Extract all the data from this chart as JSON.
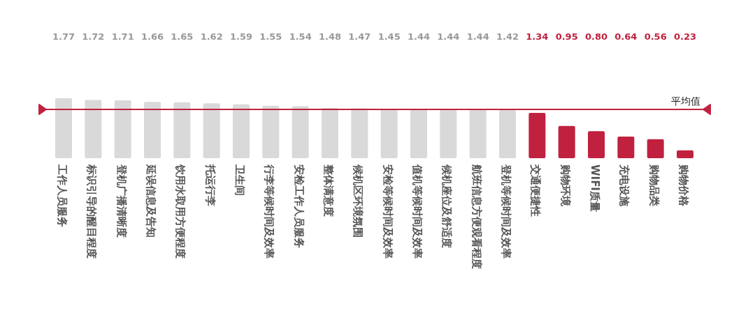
{
  "chart_data": {
    "type": "bar",
    "categories": [
      "工作人员服务",
      "标识引导的醒目程度",
      "登机广播清晰度",
      "延误信息及告知",
      "饮用水取用方便程度",
      "托运行李",
      "卫生间",
      "行李等候时间及效率",
      "安检工作人员服务",
      "整体满意度",
      "候机区环境氛围",
      "安检等候时间及效率",
      "值机等候时间及效率",
      "候机座位及舒适度",
      "航班信息方便观看程度",
      "登机等候时间及效率",
      "交通便捷性",
      "购物环境",
      "WIFI质量",
      "充电设施",
      "购物品类",
      "购物价格"
    ],
    "values": [
      1.77,
      1.72,
      1.71,
      1.66,
      1.65,
      1.62,
      1.59,
      1.55,
      1.54,
      1.48,
      1.47,
      1.45,
      1.44,
      1.44,
      1.44,
      1.42,
      1.34,
      0.95,
      0.8,
      0.64,
      0.56,
      0.23
    ],
    "value_labels": [
      "1.77",
      "1.72",
      "1.71",
      "1.66",
      "1.65",
      "1.62",
      "1.59",
      "1.55",
      "1.54",
      "1.48",
      "1.47",
      "1.45",
      "1.44",
      "1.44",
      "1.44",
      "1.42",
      "1.34",
      "0.95",
      "0.80",
      "0.64",
      "0.56",
      "0.23"
    ],
    "colors": [
      "#d9d9d9",
      "#d9d9d9",
      "#d9d9d9",
      "#d9d9d9",
      "#d9d9d9",
      "#d9d9d9",
      "#d9d9d9",
      "#d9d9d9",
      "#d9d9d9",
      "#d9d9d9",
      "#d9d9d9",
      "#d9d9d9",
      "#d9d9d9",
      "#d9d9d9",
      "#d9d9d9",
      "#d9d9d9",
      "#c0213f",
      "#c0213f",
      "#c0213f",
      "#c0213f",
      "#c0213f",
      "#c0213f"
    ],
    "ref_lines": [
      {
        "axis": "y",
        "value": 1.44,
        "label": "平均值",
        "color": "#c0213f"
      }
    ]
  }
}
